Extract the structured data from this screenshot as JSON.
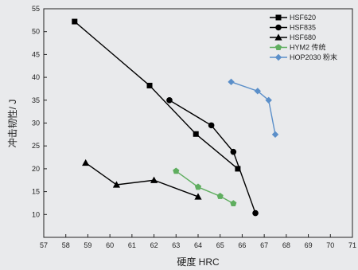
{
  "chart_data": {
    "type": "line",
    "title": "",
    "xlabel": "硬度 HRC",
    "ylabel": "冲击韧性/ J",
    "xlim": [
      57,
      71
    ],
    "ylim": [
      5,
      55
    ],
    "xticks": [
      57,
      58,
      59,
      60,
      61,
      62,
      63,
      64,
      65,
      66,
      67,
      68,
      69,
      70,
      71
    ],
    "yticks": [
      10,
      15,
      20,
      25,
      30,
      35,
      40,
      45,
      50,
      55
    ],
    "grid": false,
    "legend_position": "top-right",
    "series": [
      {
        "name": "HSF620",
        "color": "#000000",
        "marker": "square",
        "points": [
          [
            58.4,
            52.2
          ],
          [
            61.8,
            38.2
          ],
          [
            63.9,
            27.6
          ],
          [
            65.8,
            20.0
          ]
        ]
      },
      {
        "name": "HSF835",
        "color": "#000000",
        "marker": "circle",
        "points": [
          [
            62.7,
            35.0
          ],
          [
            64.6,
            29.5
          ],
          [
            65.6,
            23.7
          ],
          [
            66.6,
            10.3
          ]
        ]
      },
      {
        "name": "HSF680",
        "color": "#000000",
        "marker": "triangle",
        "points": [
          [
            58.9,
            21.3
          ],
          [
            60.3,
            16.5
          ],
          [
            62.0,
            17.5
          ],
          [
            64.0,
            13.9
          ]
        ]
      },
      {
        "name": "HYM2 传统",
        "color": "#5fae5f",
        "marker": "pentagon",
        "points": [
          [
            63.0,
            19.5
          ],
          [
            64.0,
            16.0
          ],
          [
            65.0,
            14.0
          ],
          [
            65.6,
            12.4
          ]
        ]
      },
      {
        "name": "HOP2030 粉末",
        "color": "#5b8fc9",
        "marker": "diamond",
        "points": [
          [
            65.5,
            39.0
          ],
          [
            66.7,
            37.0
          ],
          [
            67.2,
            35.0
          ],
          [
            67.5,
            27.5
          ]
        ]
      }
    ]
  }
}
